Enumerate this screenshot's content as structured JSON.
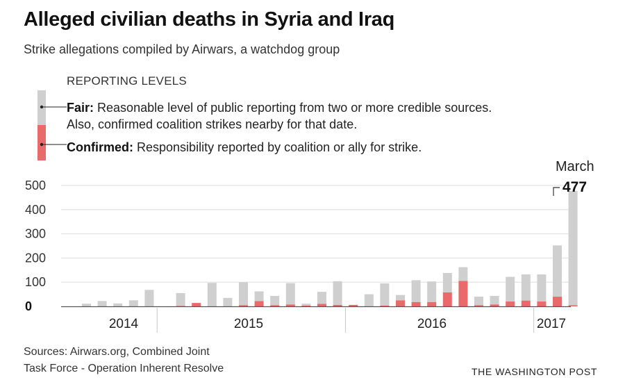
{
  "title": "Alleged civilian deaths in Syria and Iraq",
  "subtitle": "Strike allegations compiled by Airwars, a watchdog group",
  "legend": {
    "heading": "REPORTING LEVELS",
    "fair_label": "Fair:",
    "fair_text": "Reasonable level of public reporting from two or more credible sources. Also, confirmed coalition strikes nearby for that date.",
    "confirmed_label": "Confirmed:",
    "confirmed_text": "Responsibility reported by coalition or ally for strike."
  },
  "colors": {
    "fair": "#cfcfcf",
    "confirmed": "#e96a6a",
    "grid": "#dddddd",
    "axis": "#555555"
  },
  "footer": {
    "sources_line1": "Sources: Airwars.org, Combined Joint",
    "sources_line2": "Task Force - Operation Inherent Resolve",
    "credit": "THE WASHINGTON POST"
  },
  "chart_data": {
    "type": "bar",
    "stacked": true,
    "title": "Alleged civilian deaths in Syria and Iraq",
    "ylim": [
      0,
      500
    ],
    "yticks": [
      "0",
      "100",
      "200",
      "300",
      "400",
      "500"
    ],
    "categories": [
      "2014-08",
      "2014-09",
      "2014-10",
      "2014-11",
      "2014-12",
      "2015-01",
      "2015-02",
      "2015-03",
      "2015-04",
      "2015-05",
      "2015-06",
      "2015-07",
      "2015-08",
      "2015-09",
      "2015-10",
      "2015-11",
      "2015-12",
      "2016-01",
      "2016-02",
      "2016-03",
      "2016-04",
      "2016-05",
      "2016-06",
      "2016-07",
      "2016-08",
      "2016-09",
      "2016-10",
      "2016-11",
      "2016-12",
      "2017-01",
      "2017-02",
      "2017-03"
    ],
    "series": [
      {
        "name": "Confirmed",
        "values": [
          0,
          0,
          0,
          0,
          0,
          0,
          2,
          14,
          0,
          0,
          5,
          22,
          5,
          8,
          3,
          10,
          6,
          6,
          0,
          3,
          25,
          18,
          18,
          58,
          105,
          5,
          8,
          20,
          24,
          20,
          40,
          5
        ]
      },
      {
        "name": "Fair",
        "values": [
          11,
          22,
          12,
          25,
          68,
          0,
          53,
          0,
          97,
          35,
          95,
          40,
          38,
          88,
          8,
          50,
          98,
          0,
          50,
          92,
          22,
          90,
          85,
          80,
          57,
          35,
          35,
          102,
          108,
          112,
          212,
          472
        ]
      }
    ],
    "year_labels": [
      "2014",
      "2015",
      "2016",
      "2017"
    ],
    "annotation": {
      "month": "March",
      "value": "477"
    }
  }
}
